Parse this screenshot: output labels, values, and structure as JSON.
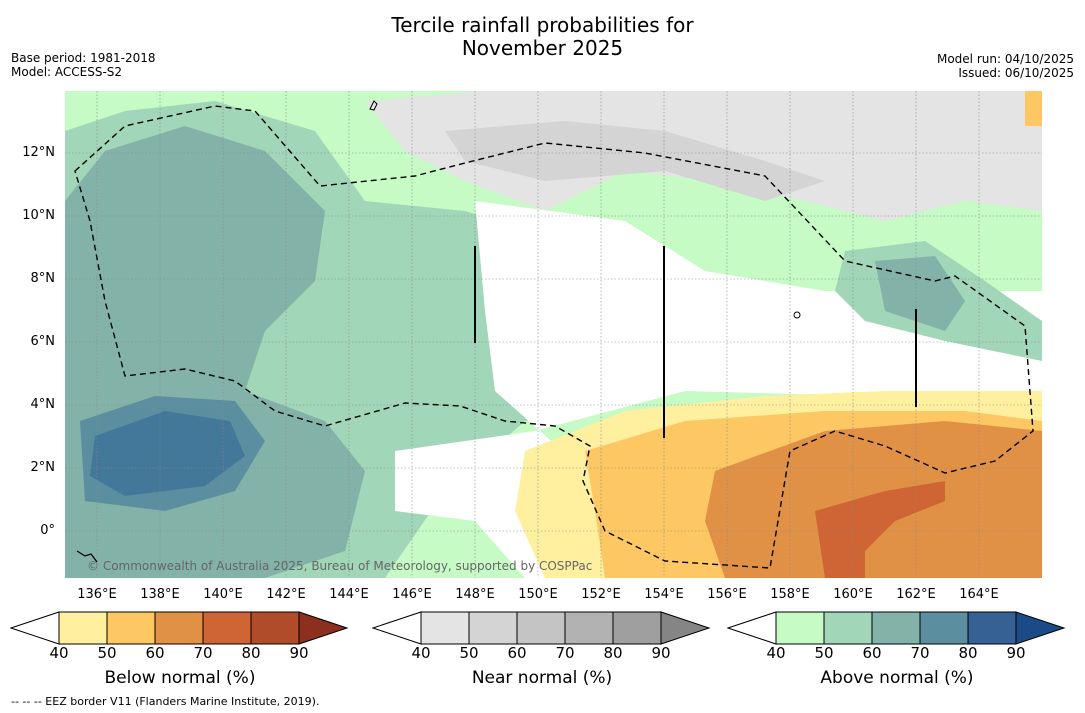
{
  "title_line1": "Tercile rainfall probabilities for",
  "title_line2": "November 2025",
  "base_period": "Base period: 1981-2018",
  "model": "Model: ACCESS-S2",
  "model_run": "Model run: 04/10/2025",
  "issued": "Issued: 06/10/2025",
  "copyright": "© Commonwealth of Australia 2025, Bureau of Meteorology, supported by COSPPac",
  "footer": "--  --  -- EEZ border V11 (Flanders Marine Institute, 2019).",
  "lat_labels": [
    "12°N",
    "10°N",
    "8°N",
    "6°N",
    "4°N",
    "2°N",
    "0°"
  ],
  "lon_labels": [
    "136°E",
    "138°E",
    "140°E",
    "142°E",
    "144°E",
    "146°E",
    "148°E",
    "150°E",
    "152°E",
    "154°E",
    "156°E",
    "158°E",
    "160°E",
    "162°E",
    "164°E"
  ],
  "colorbars": [
    {
      "title": "Below normal (%)",
      "ticks": [
        "40",
        "50",
        "60",
        "70",
        "80",
        "90"
      ],
      "colors": [
        "#fff0a0",
        "#fdc864",
        "#e09145",
        "#cf6534",
        "#b04c2a",
        "#8c2f1e"
      ]
    },
    {
      "title": "Near normal (%)",
      "ticks": [
        "40",
        "50",
        "60",
        "70",
        "80",
        "90"
      ],
      "colors": [
        "#e4e4e4",
        "#d4d4d4",
        "#c4c4c4",
        "#b2b2b2",
        "#9f9f9f",
        "#858585"
      ]
    },
    {
      "title": "Above normal (%)",
      "ticks": [
        "40",
        "50",
        "60",
        "70",
        "80",
        "90"
      ],
      "colors": [
        "#c6fbc6",
        "#a2d6b8",
        "#83b3a8",
        "#5b8fa0",
        "#356194",
        "#1a4b87"
      ]
    }
  ]
}
